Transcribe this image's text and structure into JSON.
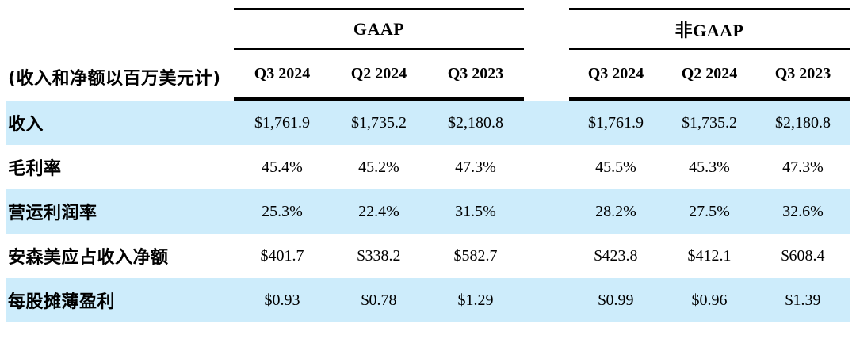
{
  "table": {
    "unit_label": "(收入和净额以百万美元计)",
    "groups": [
      {
        "name": "GAAP",
        "columns": [
          "Q3 2024",
          "Q2 2024",
          "Q3 2023"
        ]
      },
      {
        "name": "非GAAP",
        "columns": [
          "Q3 2024",
          "Q2 2024",
          "Q3 2023"
        ]
      }
    ],
    "rows": [
      {
        "label": "收入",
        "gaap": [
          "$1,761.9",
          "$1,735.2",
          "$2,180.8"
        ],
        "non_gaap": [
          "$1,761.9",
          "$1,735.2",
          "$2,180.8"
        ]
      },
      {
        "label": "毛利率",
        "gaap": [
          "45.4%",
          "45.2%",
          "47.3%"
        ],
        "non_gaap": [
          "45.5%",
          "45.3%",
          "47.3%"
        ]
      },
      {
        "label": "营运利润率",
        "gaap": [
          "25.3%",
          "22.4%",
          "31.5%"
        ],
        "non_gaap": [
          "28.2%",
          "27.5%",
          "32.6%"
        ]
      },
      {
        "label": "安森美应占收入净额",
        "gaap": [
          "$401.7",
          "$338.2",
          "$582.7"
        ],
        "non_gaap": [
          "$423.8",
          "$412.1",
          "$608.4"
        ]
      },
      {
        "label": "每股摊薄盈利",
        "gaap": [
          "$0.93",
          "$0.78",
          "$1.29"
        ],
        "non_gaap": [
          "$0.99",
          "$0.96",
          "$1.39"
        ]
      }
    ],
    "colors": {
      "row_highlight": "#cdecfb",
      "rule": "#000000",
      "text": "#000000"
    }
  },
  "chart_data": {
    "type": "table",
    "title": "(收入和净额以百万美元计)",
    "column_groups": [
      "GAAP",
      "非GAAP"
    ],
    "columns": [
      "Q3 2024",
      "Q2 2024",
      "Q3 2023",
      "Q3 2024",
      "Q2 2024",
      "Q3 2023"
    ],
    "row_labels": [
      "收入",
      "毛利率",
      "营运利润率",
      "安森美应占收入净额",
      "每股摊薄盈利"
    ],
    "values": [
      [
        "$1,761.9",
        "$1,735.2",
        "$2,180.8",
        "$1,761.9",
        "$1,735.2",
        "$2,180.8"
      ],
      [
        "45.4%",
        "45.2%",
        "47.3%",
        "45.5%",
        "45.3%",
        "47.3%"
      ],
      [
        "25.3%",
        "22.4%",
        "31.5%",
        "28.2%",
        "27.5%",
        "32.6%"
      ],
      [
        "$401.7",
        "$338.2",
        "$582.7",
        "$423.8",
        "$412.1",
        "$608.4"
      ],
      [
        "$0.93",
        "$0.78",
        "$1.29",
        "$0.99",
        "$0.96",
        "$1.39"
      ]
    ]
  }
}
